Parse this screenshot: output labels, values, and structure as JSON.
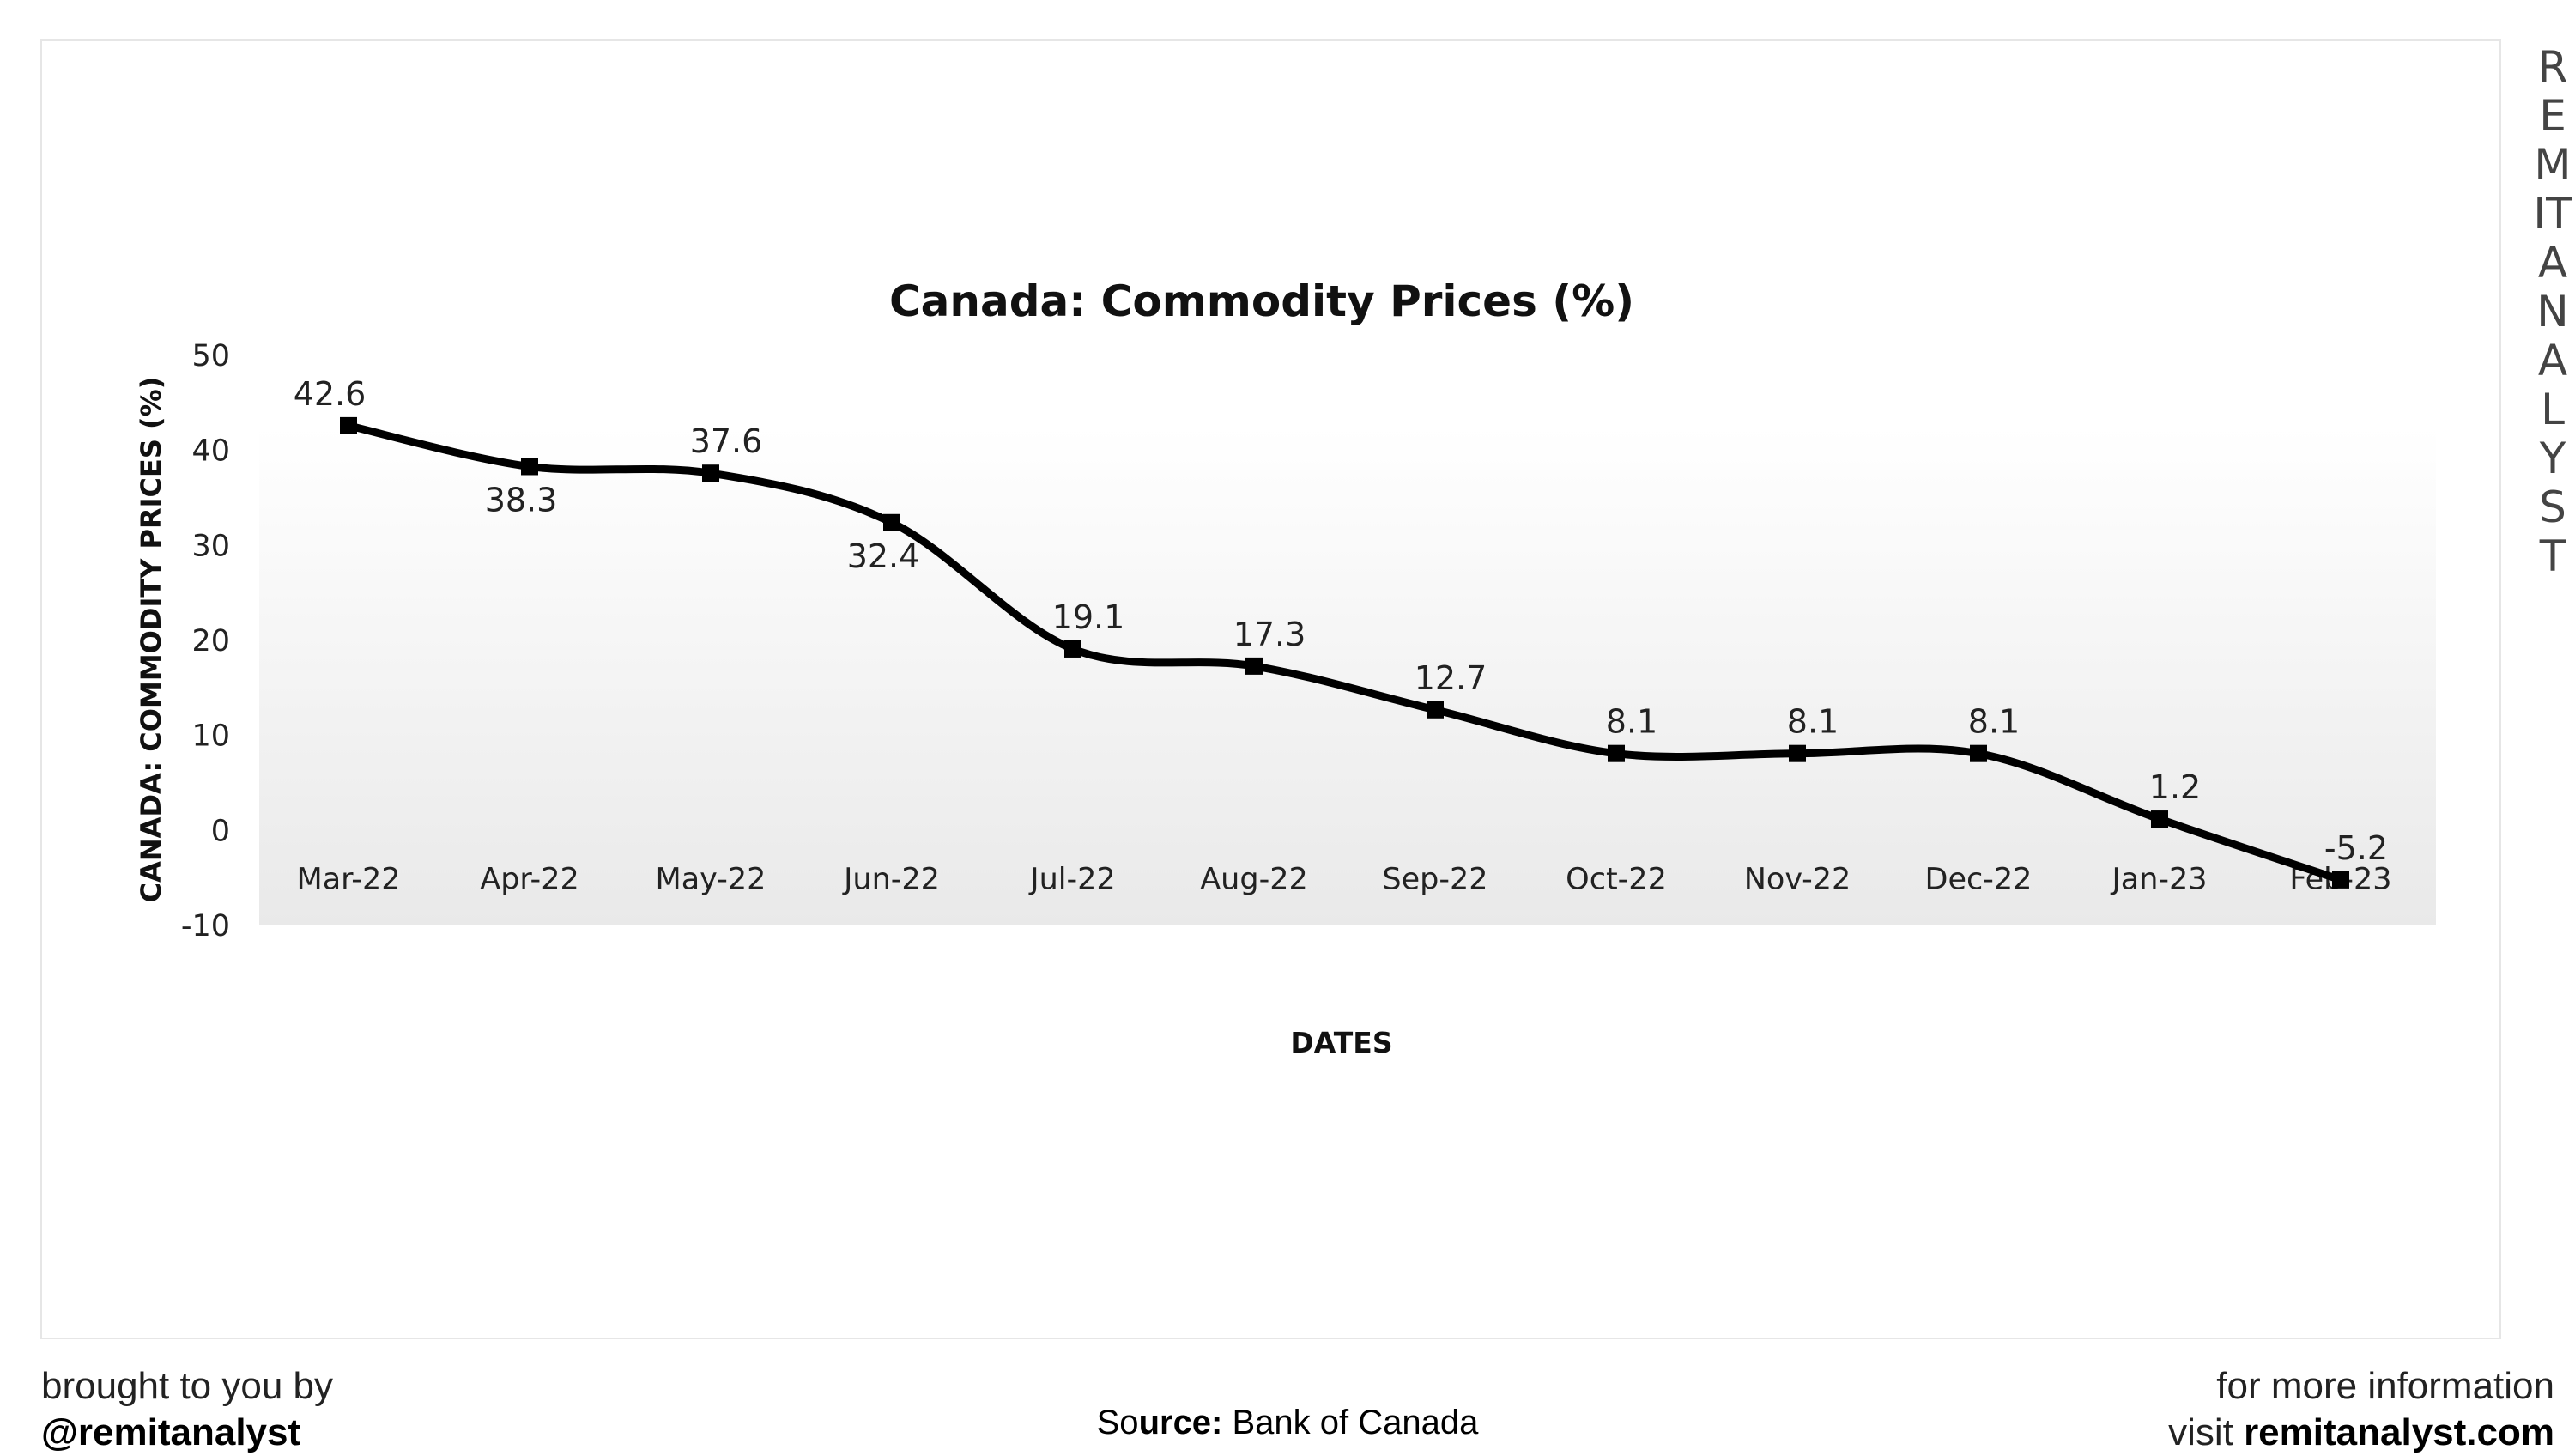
{
  "brand": {
    "vertical_text": "REMITANALYST"
  },
  "footer": {
    "left_line1": "brought to you by",
    "left_handle": "@remitanalyst",
    "source_prefix": "So",
    "source_bold": "urce:",
    "source_value": " Bank of Canada",
    "right_line1": "for more information",
    "right_visit": "visit ",
    "right_site": "remitanalyst.com"
  },
  "colors": {
    "line": "#000000",
    "plot_bg_top": "#ffffff",
    "plot_bg_bottom": "#e9e9e9",
    "frame": "#e6e6e6"
  },
  "chart_data": {
    "type": "line",
    "title": "Canada: Commodity Prices (%)",
    "xlabel": "DATES",
    "ylabel": "CANADA: COMMODITY PRICES (%)",
    "categories": [
      "Mar-22",
      "Apr-22",
      "May-22",
      "Jun-22",
      "Jul-22",
      "Aug-22",
      "Sep-22",
      "Oct-22",
      "Nov-22",
      "Dec-22",
      "Jan-23",
      "Feb-23"
    ],
    "values": [
      42.6,
      38.3,
      37.6,
      32.4,
      19.1,
      17.3,
      12.7,
      8.1,
      8.1,
      8.1,
      1.2,
      -5.2
    ],
    "data_labels": [
      "42.6",
      "38.3",
      "37.6",
      "32.4",
      "19.1",
      "17.3",
      "12.7",
      "8.1",
      "8.1",
      "8.1",
      "1.2",
      "-5.2"
    ],
    "ylim": [
      -10,
      50
    ],
    "yticks": [
      50,
      40,
      30,
      20,
      10,
      0,
      -10
    ],
    "smooth": true,
    "markers": "square",
    "grid": false,
    "legend": "none"
  }
}
